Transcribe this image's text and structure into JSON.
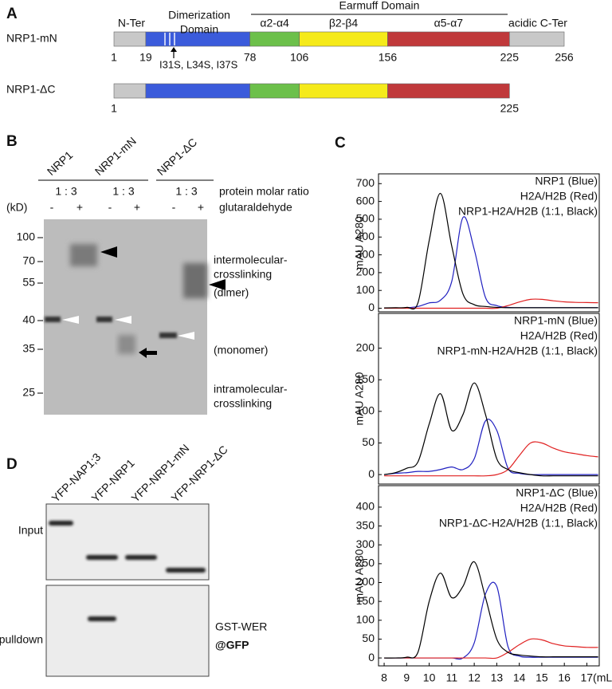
{
  "panel_a": {
    "label": "A",
    "n_ter": "N-Ter",
    "dimerization": [
      "Dimerization",
      "Domain"
    ],
    "earmuff": "Earmuff Domain",
    "helices": [
      "α2-α4",
      "β2-β4",
      "α5-α7"
    ],
    "c_ter": "acidic C-Ter",
    "mutations": "I31S, L34S, I37S",
    "colors": [
      "#c8c8c8",
      "#3b5bdb",
      "#6cc04a",
      "#f5ea1a",
      "#c0393b",
      "#c8c8c8"
    ],
    "constructs": [
      {
        "name": "NRP1-mN",
        "residues": [
          1,
          19,
          78,
          106,
          156,
          225,
          256
        ]
      },
      {
        "name": "NRP1-ΔC",
        "residues": [
          1,
          225
        ]
      }
    ]
  },
  "panel_b": {
    "label": "B",
    "lanes": [
      "NRP1",
      "NRP1-mN",
      "NRP1-ΔC"
    ],
    "ratio": [
      "1 : 3",
      "1 : 3",
      "1 : 3"
    ],
    "ratio_label": "protein molar ratio",
    "kd": "(kD)",
    "treatment": [
      "-",
      "+",
      "-",
      "+",
      "-",
      "+"
    ],
    "treatment_label": "glutaraldehyde",
    "markers": [
      100,
      70,
      55,
      40,
      35,
      25
    ],
    "inter": [
      "intermolecular-",
      "crosslinking"
    ],
    "dimer": "(dimer)",
    "monomer": "(monomer)",
    "intra": [
      "intramolecular-",
      "crosslinking"
    ]
  },
  "panel_c": {
    "label": "C"
  },
  "chart_data": [
    {
      "type": "line",
      "ylabel": "mAU A280",
      "x": [
        8,
        8.5,
        9,
        9.5,
        10,
        10.5,
        11,
        11.5,
        12,
        12.5,
        13,
        13.5,
        14,
        14.5,
        15,
        15.5,
        16,
        16.5,
        17,
        17.5
      ],
      "xlim": [
        7.75,
        17.55
      ],
      "ylim": [
        -20,
        755
      ],
      "yticks": [
        0,
        100,
        200,
        300,
        400,
        500,
        600,
        700
      ],
      "series": [
        {
          "name": "NRP1 (Blue)",
          "color": "#2020c0",
          "values": [
            2,
            2,
            3,
            10,
            30,
            45,
            150,
            510,
            330,
            60,
            15,
            5,
            3,
            3,
            3,
            3,
            3,
            3,
            3,
            3
          ]
        },
        {
          "name": "H2A/H2B (Red)",
          "color": "#e02020",
          "values": [
            0,
            0,
            0,
            0,
            0,
            0,
            0,
            0,
            0,
            0,
            0,
            15,
            35,
            50,
            50,
            42,
            36,
            33,
            32,
            31
          ]
        },
        {
          "name": "NRP1-H2A/H2B (1:1, Black)",
          "color": "#000000",
          "values": [
            2,
            3,
            5,
            30,
            380,
            645,
            350,
            80,
            20,
            10,
            5,
            3,
            3,
            3,
            3,
            3,
            3,
            3,
            3,
            3
          ]
        }
      ]
    },
    {
      "type": "line",
      "ylabel": "mAU A280",
      "x": [
        8,
        8.5,
        9,
        9.5,
        10,
        10.5,
        11,
        11.5,
        12,
        12.5,
        13,
        13.5,
        14,
        14.5,
        15,
        15.5,
        16,
        16.5,
        17,
        17.5
      ],
      "xlim": [
        7.75,
        17.55
      ],
      "ylim": [
        -15,
        255
      ],
      "yticks": [
        0,
        50,
        100,
        150,
        200
      ],
      "series": [
        {
          "name": "NRP1-mN (Blue)",
          "color": "#2020c0",
          "values": [
            0,
            2,
            3,
            5,
            5,
            8,
            12,
            8,
            25,
            85,
            70,
            10,
            2,
            0,
            0,
            0,
            0,
            0,
            0,
            0
          ]
        },
        {
          "name": "H2A/H2B (Red)",
          "color": "#e02020",
          "values": [
            -2,
            -2,
            -2,
            -2,
            -2,
            -2,
            -2,
            -2,
            -2,
            -2,
            0,
            8,
            30,
            50,
            50,
            42,
            36,
            33,
            30,
            28
          ]
        },
        {
          "name": "NRP1-mN-H2A/H2B (1:1, Black)",
          "color": "#000000",
          "values": [
            0,
            3,
            10,
            20,
            80,
            128,
            70,
            95,
            145,
            95,
            25,
            8,
            3,
            0,
            -2,
            -2,
            -2,
            -2,
            -2,
            -2
          ]
        }
      ]
    },
    {
      "type": "line",
      "ylabel": "mAU A280",
      "x": [
        8,
        8.5,
        9,
        9.5,
        10,
        10.5,
        11,
        11.5,
        12,
        12.5,
        13,
        13.5,
        14,
        14.5,
        15,
        15.5,
        16,
        16.5,
        17,
        17.5
      ],
      "xlim": [
        7.75,
        17.55
      ],
      "ylim": [
        -21,
        457
      ],
      "yticks": [
        0,
        50,
        100,
        150,
        200,
        250,
        300,
        350,
        400
      ],
      "xticks": [
        8,
        9,
        10,
        11,
        12,
        13,
        14,
        15,
        16,
        {
          "value": 17,
          "label": "17(mL)"
        }
      ],
      "series": [
        {
          "name": "NRP1-ΔC (Blue)",
          "color": "#2020c0",
          "values": [
            0,
            0,
            0,
            0,
            0,
            0,
            0,
            0,
            40,
            170,
            190,
            30,
            5,
            2,
            2,
            2,
            2,
            2,
            2,
            2
          ]
        },
        {
          "name": "H2A/H2B (Red)",
          "color": "#e02020",
          "values": [
            0,
            0,
            0,
            0,
            0,
            0,
            0,
            0,
            0,
            0,
            0,
            15,
            35,
            50,
            48,
            38,
            32,
            30,
            28,
            28
          ]
        },
        {
          "name": "NRP1-ΔC-H2A/H2B (1:1, Black)",
          "color": "#000000",
          "values": [
            0,
            0,
            2,
            15,
            150,
            225,
            160,
            190,
            255,
            160,
            50,
            15,
            8,
            5,
            3,
            3,
            3,
            3,
            3,
            3
          ]
        }
      ]
    }
  ],
  "panel_d": {
    "label": "D",
    "lanes": [
      "YFP-NAP1;3",
      "YFP-NRP1",
      "YFP-NRP1-mN",
      "YFP-NRP1-ΔC"
    ],
    "rows": [
      "Input",
      "pulldown"
    ],
    "antibody": [
      "GST-WER",
      "@GFP"
    ]
  }
}
